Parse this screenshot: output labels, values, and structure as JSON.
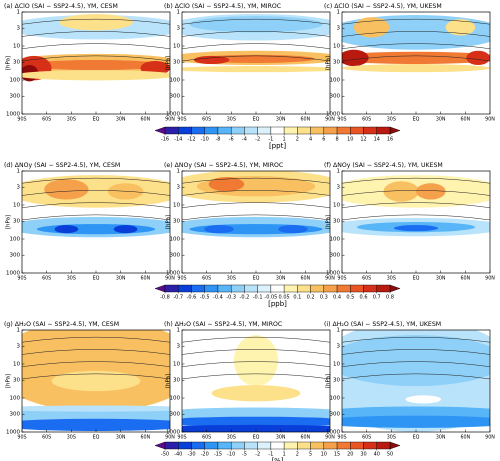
{
  "panels": [
    {
      "title": "(a) ΔClO (SAI − SSP2-4.5), YM, CESM"
    },
    {
      "title": "(b) ΔClO (SAI − SSP2-4.5), YM, MIROC"
    },
    {
      "title": "(c) ΔClO (SAI − SSP2-4.5), YM, UKESM"
    },
    {
      "title": "(d) ΔNOy (SAI − SSP2-4.5), YM, CESM"
    },
    {
      "title": "(e) ΔNOy (SAI − SSP2-4.5), YM, MIROC"
    },
    {
      "title": "(f) ΔNOy (SAI − SSP2-4.5), YM, UKESM"
    },
    {
      "title": "(g) ΔH₂O (SAI − SSP2-4.5), YM, CESM"
    },
    {
      "title": "(h) ΔH₂O (SAI − SSP2-4.5), YM, MIROC"
    },
    {
      "title": "(i) ΔH₂O (SAI − SSP2-4.5), YM, UKESM"
    }
  ],
  "ylabel": "[hPa]",
  "ylim": [
    1,
    1000
  ],
  "yticks": [
    1,
    3,
    10,
    30,
    100,
    300,
    1000
  ],
  "xticks": [
    "90S",
    "60S",
    "30S",
    "EQ",
    "30N",
    "60N",
    "90N"
  ],
  "colorbars": [
    {
      "ticks": [
        -16,
        -14,
        -12,
        -10,
        -8,
        -6,
        -4,
        -2,
        -1,
        1,
        2,
        4,
        6,
        8,
        10,
        12,
        14,
        16
      ],
      "unit": "[ppt]"
    },
    {
      "ticks": [
        -0.8,
        -0.7,
        -0.6,
        -0.5,
        -0.4,
        -0.3,
        -0.2,
        -0.1,
        -0.05,
        0.05,
        0.1,
        0.2,
        0.3,
        0.4,
        0.5,
        0.6,
        0.7,
        0.8
      ],
      "unit": "[ppb]"
    },
    {
      "ticks": [
        -50,
        -40,
        -30,
        -20,
        -15,
        -10,
        -5,
        -2,
        -1,
        1,
        2,
        5,
        10,
        15,
        20,
        30,
        40,
        50
      ],
      "unit": "[%]"
    }
  ],
  "colors": [
    "#5e0a8c",
    "#2c1fa8",
    "#0a3ed8",
    "#1a6cf0",
    "#2f95f5",
    "#58b5f7",
    "#8fd0f8",
    "#b8e3fa",
    "#dcf1fb",
    "#ffffff",
    "#fff3b0",
    "#fde08a",
    "#f9c061",
    "#f5a04a",
    "#f07a33",
    "#e85424",
    "#d63018",
    "#b81a10",
    "#8c0a0a"
  ]
}
